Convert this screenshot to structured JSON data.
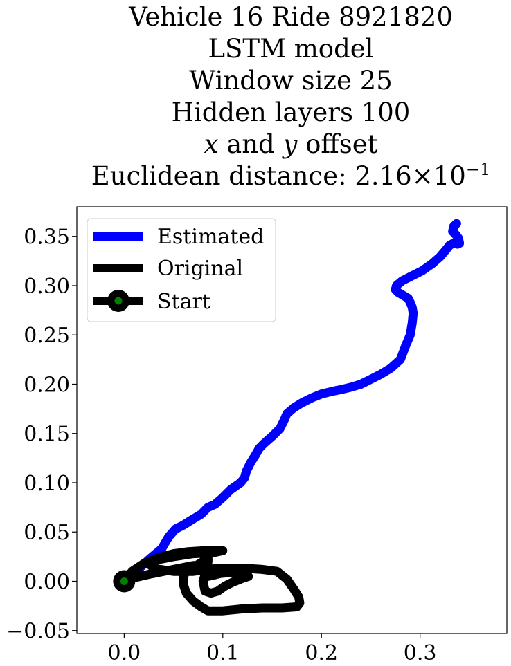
{
  "chart_data": {
    "type": "line",
    "title_lines": [
      "Vehicle 16 Ride 8921820",
      "LSTM model",
      "Window size 25",
      "Hidden layers 100"
    ],
    "title_xy": {
      "x": "x",
      "and": "and",
      "y": "y",
      "rest": "offset"
    },
    "title_dist": {
      "prefix": "Euclidean distance: ",
      "mantissa": "2.16",
      "times": "×10",
      "exp": "−1"
    },
    "xlim": [
      -0.048,
      0.388
    ],
    "ylim": [
      -0.053,
      0.38
    ],
    "xticks": [
      0.0,
      0.1,
      0.2,
      0.3
    ],
    "xtick_labels": [
      "0.0",
      "0.1",
      "0.2",
      "0.3"
    ],
    "yticks": [
      -0.05,
      0.0,
      0.05,
      0.1,
      0.15,
      0.2,
      0.25,
      0.3,
      0.35
    ],
    "ytick_labels": [
      "−0.05",
      "0.00",
      "0.05",
      "0.10",
      "0.15",
      "0.20",
      "0.25",
      "0.30",
      "0.35"
    ],
    "grid": false,
    "legend_position": "top-left",
    "series": [
      {
        "name": "Estimated",
        "color": "#0000ff",
        "x": [
          0.0,
          0.012,
          0.025,
          0.038,
          0.045,
          0.052,
          0.06,
          0.068,
          0.078,
          0.085,
          0.092,
          0.1,
          0.108,
          0.118,
          0.122,
          0.124,
          0.128,
          0.133,
          0.137,
          0.142,
          0.15,
          0.158,
          0.162,
          0.165,
          0.172,
          0.18,
          0.19,
          0.2,
          0.212,
          0.222,
          0.23,
          0.24,
          0.25,
          0.26,
          0.27,
          0.28,
          0.285,
          0.29,
          0.292,
          0.293,
          0.292,
          0.29,
          0.288,
          0.283,
          0.278,
          0.275,
          0.276,
          0.282,
          0.292,
          0.302,
          0.312,
          0.32,
          0.326,
          0.33,
          0.334,
          0.338,
          0.34,
          0.339,
          0.336,
          0.333,
          0.334,
          0.337
        ],
        "y": [
          0.0,
          0.01,
          0.022,
          0.033,
          0.045,
          0.053,
          0.057,
          0.062,
          0.068,
          0.075,
          0.078,
          0.085,
          0.093,
          0.1,
          0.105,
          0.112,
          0.12,
          0.128,
          0.135,
          0.14,
          0.147,
          0.155,
          0.163,
          0.17,
          0.176,
          0.181,
          0.186,
          0.19,
          0.193,
          0.195,
          0.197,
          0.2,
          0.205,
          0.21,
          0.216,
          0.225,
          0.238,
          0.25,
          0.262,
          0.272,
          0.278,
          0.283,
          0.287,
          0.29,
          0.293,
          0.296,
          0.3,
          0.305,
          0.31,
          0.315,
          0.322,
          0.329,
          0.336,
          0.341,
          0.343,
          0.342,
          0.343,
          0.348,
          0.352,
          0.355,
          0.36,
          0.363
        ]
      },
      {
        "name": "Original",
        "color": "#000000",
        "x": [
          0.0,
          0.008,
          0.02,
          0.035,
          0.05,
          0.065,
          0.08,
          0.095,
          0.1,
          0.09,
          0.07,
          0.05,
          0.035,
          0.025,
          0.03,
          0.05,
          0.07,
          0.085,
          0.095,
          0.11,
          0.125,
          0.14,
          0.155,
          0.165,
          0.172,
          0.177,
          0.178,
          0.175,
          0.16,
          0.14,
          0.12,
          0.1,
          0.085,
          0.078,
          0.07,
          0.063,
          0.06,
          0.06,
          0.063,
          0.07,
          0.08,
          0.085,
          0.085,
          0.083,
          0.08,
          0.082,
          0.088,
          0.095,
          0.102,
          0.11,
          0.12,
          0.126,
          0.122,
          0.11,
          0.098,
          0.09,
          0.085,
          0.083,
          0.082,
          0.08,
          0.07,
          0.055,
          0.04,
          0.025,
          0.012,
          0.005,
          0.0
        ],
        "y": [
          0.0,
          0.01,
          0.018,
          0.024,
          0.028,
          0.03,
          0.031,
          0.031,
          0.031,
          0.029,
          0.028,
          0.025,
          0.022,
          0.018,
          0.013,
          0.01,
          0.01,
          0.012,
          0.013,
          0.013,
          0.013,
          0.012,
          0.01,
          0.002,
          -0.008,
          -0.016,
          -0.022,
          -0.026,
          -0.027,
          -0.027,
          -0.028,
          -0.03,
          -0.03,
          -0.026,
          -0.02,
          -0.012,
          -0.003,
          0.005,
          0.01,
          0.014,
          0.02,
          0.025,
          0.02,
          0.01,
          0.0,
          -0.01,
          -0.012,
          -0.01,
          -0.005,
          -0.001,
          0.003,
          0.005,
          0.008,
          0.009,
          0.008,
          0.006,
          0.005,
          0.008,
          0.012,
          0.015,
          0.016,
          0.013,
          0.01,
          0.007,
          0.004,
          0.002,
          0.0
        ]
      }
    ],
    "start": {
      "name": "Start",
      "x": 0.0,
      "y": 0.0,
      "color": "#000000",
      "inner_color": "#008000"
    }
  }
}
